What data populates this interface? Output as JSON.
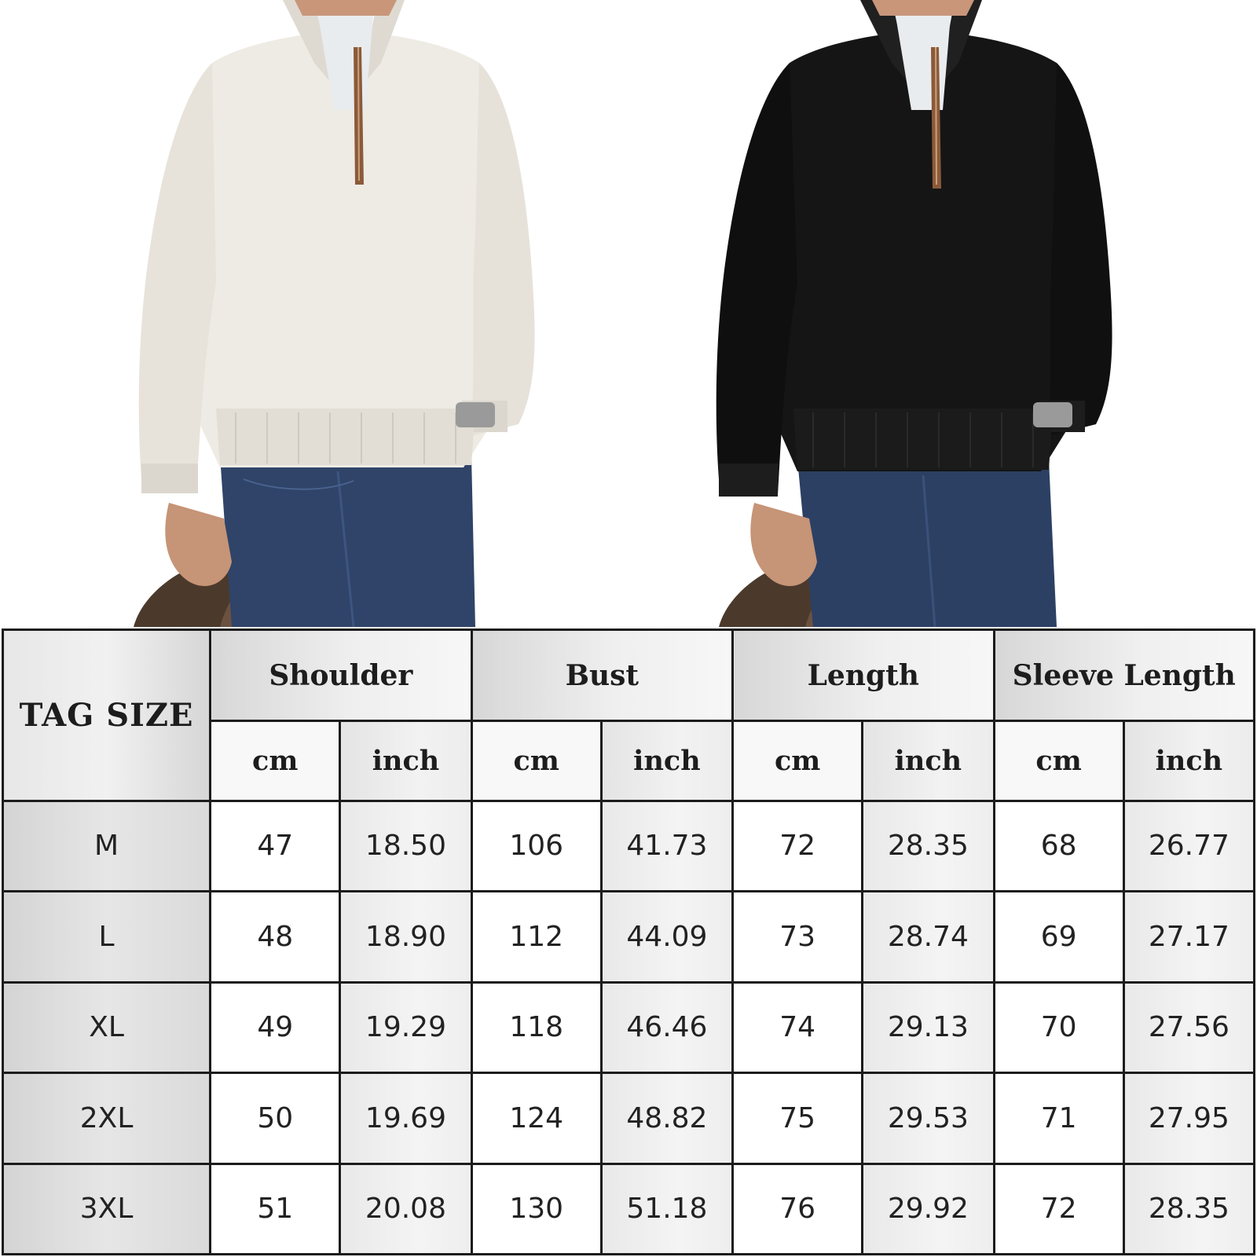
{
  "photos": [
    {
      "name": "white-sweater-model",
      "sweater_color": "#ece9e2"
    },
    {
      "name": "black-sweater-model",
      "sweater_color": "#131313"
    }
  ],
  "size_table": {
    "tag_header": "TAG SIZE",
    "groups": [
      "Shoulder",
      "Bust",
      "Length",
      "Sleeve Length"
    ],
    "units": [
      "cm",
      "inch"
    ],
    "rows": [
      {
        "size": "M",
        "values": [
          "47",
          "18.50",
          "106",
          "41.73",
          "72",
          "28.35",
          "68",
          "26.77"
        ]
      },
      {
        "size": "L",
        "values": [
          "48",
          "18.90",
          "112",
          "44.09",
          "73",
          "28.74",
          "69",
          "27.17"
        ]
      },
      {
        "size": "XL",
        "values": [
          "49",
          "19.29",
          "118",
          "46.46",
          "74",
          "29.13",
          "70",
          "27.56"
        ]
      },
      {
        "size": "2XL",
        "values": [
          "50",
          "19.69",
          "124",
          "48.82",
          "75",
          "29.53",
          "71",
          "27.95"
        ]
      },
      {
        "size": "3XL",
        "values": [
          "51",
          "20.08",
          "130",
          "51.18",
          "76",
          "29.92",
          "72",
          "28.35"
        ]
      }
    ]
  }
}
